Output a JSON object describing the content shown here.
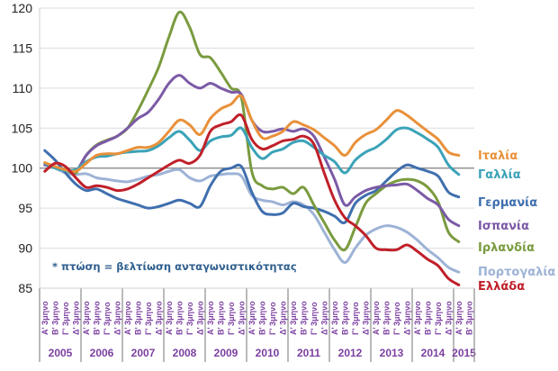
{
  "chart_data": {
    "type": "line",
    "title": "",
    "xlabel": "",
    "ylabel": "",
    "ylim": [
      85,
      120
    ],
    "yticks": [
      85,
      90,
      95,
      100,
      105,
      110,
      115,
      120
    ],
    "grid": true,
    "reference_line": 100,
    "legend_placement": "right (labels at line ends)",
    "quarter_labels": [
      "Α' 3μηνο",
      "Β' 3μηνο",
      "Γ' 3μηνο",
      "Δ' 3μηνο"
    ],
    "years": [
      {
        "label": "2005",
        "quarters": 4
      },
      {
        "label": "2006",
        "quarters": 4
      },
      {
        "label": "2007",
        "quarters": 4
      },
      {
        "label": "2008",
        "quarters": 4
      },
      {
        "label": "2009",
        "quarters": 4
      },
      {
        "label": "2010",
        "quarters": 4
      },
      {
        "label": "2011",
        "quarters": 4
      },
      {
        "label": "2012",
        "quarters": 4
      },
      {
        "label": "2013",
        "quarters": 4
      },
      {
        "label": "2014",
        "quarters": 4
      },
      {
        "label": "2015",
        "quarters": 2
      }
    ],
    "annotation": "* πτώση = βελτίωση ανταγωνιστικότητας",
    "series": [
      {
        "name": "Ιταλία",
        "color": "#e8913a",
        "values": [
          100.7,
          100.2,
          99.8,
          99.6,
          100.6,
          101.6,
          101.8,
          101.8,
          102.2,
          102.6,
          102.6,
          103.2,
          104.6,
          106.0,
          105.4,
          104.2,
          106.2,
          107.4,
          108.0,
          109.0,
          106.0,
          103.8,
          104.0,
          104.6,
          105.8,
          105.4,
          104.8,
          103.8,
          102.8,
          101.6,
          103.2,
          104.2,
          104.8,
          106.0,
          107.2,
          106.6,
          105.6,
          104.6,
          103.6,
          102.0,
          101.6
        ]
      },
      {
        "name": "Γαλλία",
        "color": "#3ba3b8",
        "values": [
          100.6,
          100.0,
          99.7,
          99.8,
          100.8,
          101.4,
          101.5,
          101.8,
          102.0,
          102.1,
          102.2,
          102.8,
          103.8,
          104.6,
          103.5,
          102.2,
          103.4,
          103.9,
          104.1,
          105.0,
          102.6,
          101.2,
          102.0,
          102.4,
          103.2,
          103.4,
          102.6,
          101.6,
          100.8,
          99.4,
          101.0,
          102.0,
          102.6,
          103.6,
          104.8,
          105.0,
          104.4,
          103.6,
          102.6,
          100.4,
          99.2
        ]
      },
      {
        "name": "Γερμανία",
        "color": "#3f6fae",
        "values": [
          102.2,
          101.0,
          99.4,
          98.0,
          97.2,
          97.4,
          96.8,
          96.2,
          95.8,
          95.4,
          95.0,
          95.2,
          95.6,
          96.0,
          95.6,
          95.2,
          97.8,
          99.6,
          100.0,
          100.2,
          97.0,
          94.6,
          94.2,
          94.4,
          95.6,
          95.2,
          95.0,
          94.6,
          94.0,
          93.2,
          95.6,
          96.6,
          97.2,
          98.4,
          99.6,
          100.4,
          100.0,
          99.6,
          99.0,
          97.0,
          96.4
        ]
      },
      {
        "name": "Ισπανία",
        "color": "#7b5aa6",
        "values": [
          100.4,
          100.1,
          99.8,
          99.6,
          101.6,
          102.8,
          103.4,
          104.0,
          105.0,
          106.2,
          107.0,
          108.6,
          110.6,
          111.6,
          110.6,
          110.0,
          110.6,
          110.0,
          109.5,
          109.2,
          106.0,
          104.6,
          104.6,
          104.9,
          104.6,
          104.9,
          104.0,
          101.4,
          98.6,
          95.4,
          96.4,
          97.2,
          97.6,
          97.8,
          97.9,
          98.0,
          97.2,
          96.2,
          95.4,
          93.6,
          92.8
        ]
      },
      {
        "name": "Ιρλανδία",
        "color": "#7a9b3f",
        "values": [
          100.6,
          100.1,
          99.8,
          99.4,
          101.6,
          102.9,
          103.5,
          104.0,
          105.0,
          107.2,
          109.8,
          112.6,
          116.4,
          119.5,
          117.6,
          114.2,
          113.8,
          112.0,
          110.0,
          108.8,
          99.6,
          97.8,
          97.4,
          97.6,
          96.8,
          97.6,
          95.4,
          93.2,
          91.0,
          89.8,
          92.6,
          95.6,
          96.8,
          97.8,
          98.4,
          98.6,
          98.4,
          97.6,
          95.8,
          92.0,
          90.8
        ]
      },
      {
        "name": "Πορτογαλία",
        "color": "#9db3d6",
        "values": [
          100.4,
          100.0,
          99.4,
          99.2,
          99.3,
          98.8,
          98.6,
          98.4,
          98.3,
          98.6,
          99.0,
          99.2,
          99.6,
          99.8,
          98.8,
          98.4,
          99.0,
          99.2,
          99.3,
          99.0,
          96.6,
          96.0,
          95.8,
          95.4,
          95.8,
          95.4,
          94.2,
          92.0,
          89.8,
          88.2,
          90.0,
          91.6,
          92.4,
          92.8,
          92.6,
          92.0,
          91.0,
          89.8,
          88.8,
          87.6,
          87.0
        ]
      },
      {
        "name": "Ελλάδα",
        "color": "#c0202a",
        "values": [
          99.6,
          100.6,
          100.2,
          98.8,
          97.6,
          97.8,
          97.6,
          97.2,
          97.4,
          98.0,
          98.8,
          99.6,
          100.4,
          101.0,
          100.6,
          101.6,
          104.6,
          105.4,
          105.8,
          106.6,
          103.6,
          102.4,
          102.8,
          103.4,
          103.6,
          104.0,
          103.0,
          99.4,
          96.0,
          93.8,
          92.8,
          91.6,
          90.0,
          89.8,
          89.8,
          90.4,
          89.6,
          88.6,
          87.8,
          86.2,
          85.4
        ]
      }
    ]
  }
}
